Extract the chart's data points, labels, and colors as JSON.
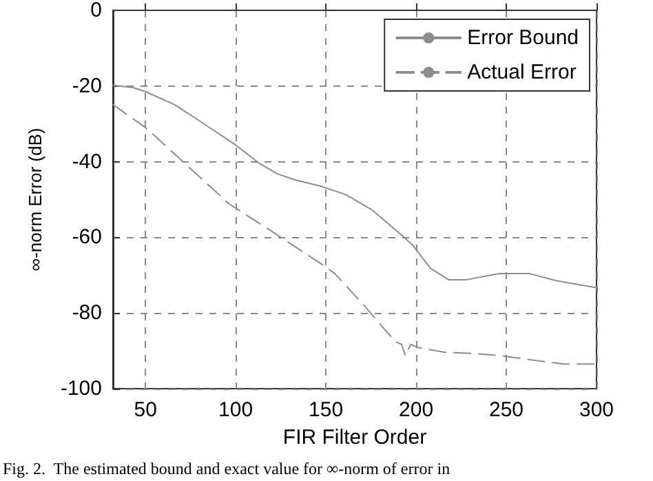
{
  "chart_data": {
    "type": "line",
    "xlabel": "FIR Filter Order",
    "ylabel": "∞-norm Error (dB)",
    "annotations": [
      "Fig. 2.  The estimated bound and exact value for ∞-norm of error in"
    ],
    "xlim": [
      32,
      300
    ],
    "xticks": [
      50,
      100,
      150,
      200,
      250,
      300
    ],
    "ylim": [
      -100,
      0
    ],
    "yticks": [
      -100,
      -80,
      -60,
      -40,
      -20,
      0
    ],
    "grid": true,
    "legend": "top right",
    "marker": "none",
    "series": [
      {
        "name": "Error Bound",
        "color": "#8c8c8c",
        "line_style": "solid",
        "x": [
          32,
          43,
          50,
          66,
          78,
          100,
          113,
          123,
          133,
          148,
          161,
          176,
          191,
          198,
          208,
          218,
          228,
          246,
          263,
          278,
          300
        ],
        "values": [
          -19.8,
          -20.4,
          -21.5,
          -24.9,
          -28.6,
          -35.6,
          -40.4,
          -43.2,
          -44.8,
          -46.6,
          -48.7,
          -52.9,
          -59,
          -62,
          -68.2,
          -71.2,
          -71.2,
          -69.6,
          -69.6,
          -71.5,
          -73.3
        ]
      },
      {
        "name": "Actual Error",
        "color": "#8c8c8c",
        "line_style": "dashed",
        "x": [
          32,
          50,
          56,
          71,
          96,
          102,
          120,
          148,
          155,
          171,
          183,
          189,
          192,
          194,
          197,
          201,
          216,
          232,
          247,
          267,
          282,
          300
        ],
        "values": [
          -24.9,
          -31,
          -33.5,
          -40.1,
          -51,
          -52.9,
          -58.4,
          -67.2,
          -69.6,
          -77.9,
          -84.6,
          -87.7,
          -88.3,
          -91.3,
          -88.3,
          -89.1,
          -90.4,
          -90.7,
          -91.3,
          -92.6,
          -93.5,
          -93.5
        ]
      }
    ]
  }
}
